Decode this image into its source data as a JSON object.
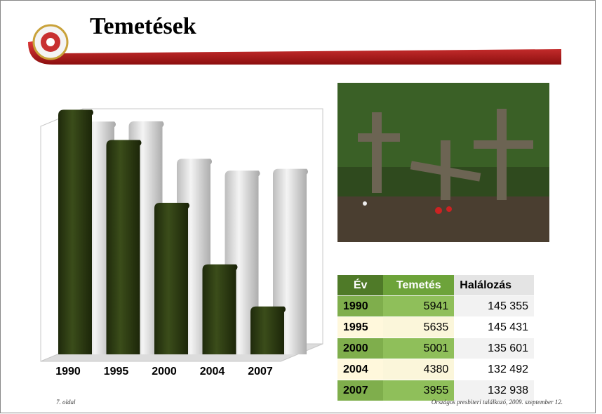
{
  "header": {
    "title": "Temetések"
  },
  "chart_data": {
    "type": "bar",
    "categories": [
      "1990",
      "1995",
      "2000",
      "2004",
      "2007"
    ],
    "series": [
      {
        "name": "Halálozás",
        "color": "#d9d9d9",
        "axis": "y2",
        "values": [
          145355,
          145431,
          135601,
          132492,
          132938
        ]
      },
      {
        "name": "Temetés",
        "color": "#2f3d14",
        "values": [
          5941,
          5635,
          5001,
          4380,
          3955
        ]
      }
    ],
    "ylim": [
      3500,
      6000
    ],
    "y2lim": [
      85000,
      150000
    ]
  },
  "table": {
    "header": [
      "Év",
      "Temetés",
      "Halálozás"
    ],
    "rows": [
      [
        "1990",
        "5941",
        "145 355"
      ],
      [
        "1995",
        "5635",
        "145 431"
      ],
      [
        "2000",
        "5001",
        "135 601"
      ],
      [
        "2004",
        "4380",
        "132 492"
      ],
      [
        "2007",
        "3955",
        "132 938"
      ]
    ]
  },
  "footer": {
    "page": "7. oldal",
    "event": "Országos presbiteri találkozó, 2009. szeptember 12."
  }
}
